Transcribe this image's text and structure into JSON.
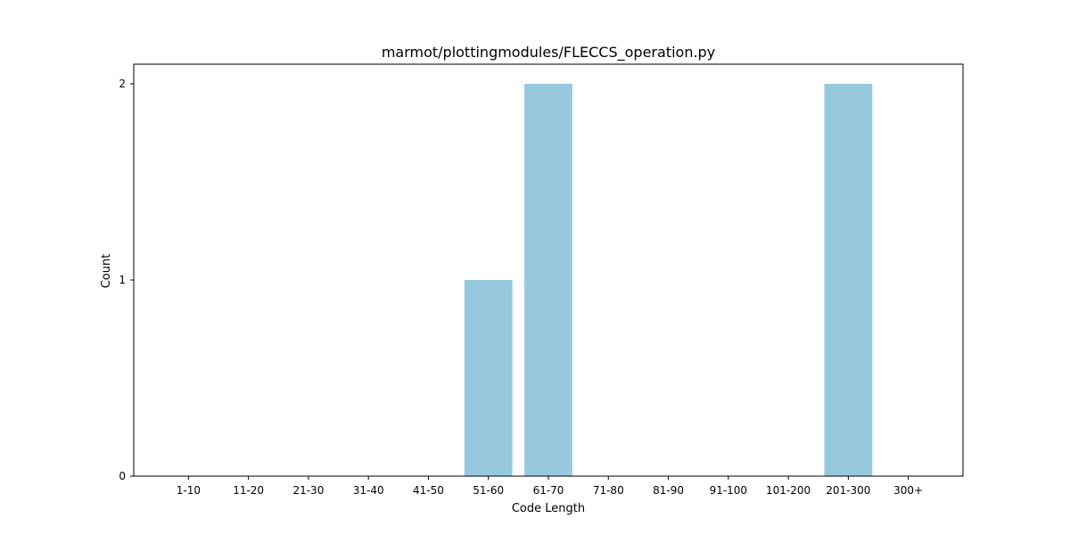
{
  "chart_data": {
    "type": "bar",
    "title": "marmot/plottingmodules/FLECCS_operation.py",
    "xlabel": "Code Length",
    "ylabel": "Count",
    "categories": [
      "1-10",
      "11-20",
      "21-30",
      "31-40",
      "41-50",
      "51-60",
      "61-70",
      "71-80",
      "81-90",
      "91-100",
      "101-200",
      "201-300",
      "300+"
    ],
    "values": [
      0,
      0,
      0,
      0,
      0,
      1,
      2,
      0,
      0,
      0,
      0,
      2,
      0
    ],
    "ylim": [
      0,
      2.1
    ],
    "yticks": [
      0,
      1,
      2
    ],
    "bar_color": "#96c9dd",
    "grid": false,
    "legend": "none"
  }
}
